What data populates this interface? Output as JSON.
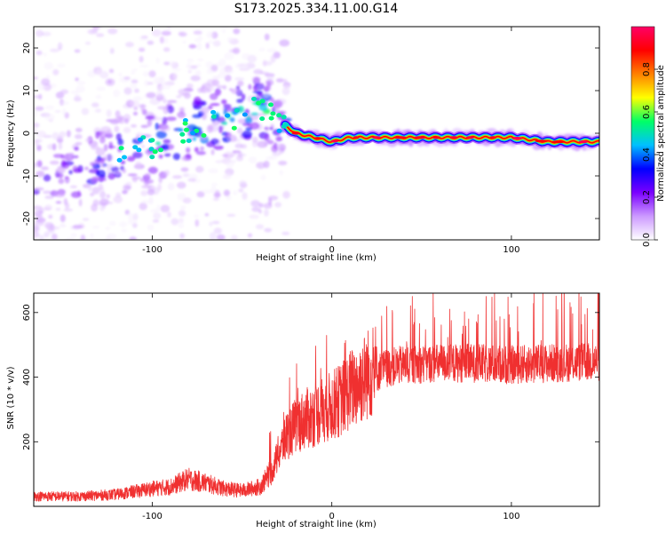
{
  "figure": {
    "title": "S173.2025.334.11.00.G14"
  },
  "chart_data": [
    {
      "type": "heatmap",
      "title": "S173.2025.334.11.00.G14",
      "xlabel": "Height of straight line (km)",
      "ylabel": "Frequency (Hz)",
      "xlim": [
        -166,
        149
      ],
      "ylim": [
        -25,
        25
      ],
      "xticks": [
        -100,
        0,
        100
      ],
      "yticks": [
        -20,
        -10,
        0,
        10,
        20
      ],
      "colorbar": {
        "label": "Normalized spectral amplitude",
        "range": [
          0.0,
          1.0
        ],
        "ticks": [
          "0.0",
          "0.2",
          "0.4",
          "0.6",
          "0.8"
        ],
        "tick_values": [
          0.0,
          0.2,
          0.4,
          0.6,
          0.8
        ],
        "colors": [
          "#ffffff",
          "#cc99ff",
          "#7a00ff",
          "#0000ff",
          "#00c0ff",
          "#00ff66",
          "#ffff00",
          "#ff8000",
          "#ff0000",
          "#ff0066"
        ]
      },
      "ridge": {
        "x": [
          -166,
          -140,
          -120,
          -100,
          -80,
          -60,
          -40,
          -30,
          -20,
          -10,
          0,
          10,
          20,
          40,
          60,
          80,
          100,
          120,
          149
        ],
        "y": [
          -12,
          -9,
          -6,
          -3,
          1,
          3,
          6,
          3,
          0,
          -1,
          -2,
          -1,
          -1,
          -1,
          -1,
          -1,
          -1,
          -2,
          -2
        ],
        "amplitude": [
          0.2,
          0.25,
          0.3,
          0.35,
          0.4,
          0.4,
          0.45,
          0.4,
          0.6,
          0.7,
          0.7,
          0.8,
          0.85,
          0.85,
          0.9,
          0.9,
          0.85,
          0.9,
          0.7
        ]
      }
    },
    {
      "type": "line",
      "xlabel": "Height of straight line (km)",
      "ylabel": "SNR (10 * v/v)",
      "xlim": [
        -166,
        149
      ],
      "ylim": [
        0,
        660
      ],
      "xticks": [
        -100,
        0,
        100
      ],
      "yticks": [
        200,
        400,
        600
      ],
      "color": "#f03030",
      "trend": {
        "x": [
          -166,
          -140,
          -120,
          -100,
          -90,
          -80,
          -70,
          -60,
          -50,
          -40,
          -35,
          -30,
          -25,
          -20,
          -15,
          -10,
          -5,
          0,
          5,
          10,
          15,
          20,
          30,
          40,
          60,
          80,
          100,
          120,
          149
        ],
        "y": [
          25,
          25,
          30,
          45,
          50,
          70,
          60,
          45,
          40,
          50,
          80,
          160,
          220,
          250,
          270,
          280,
          300,
          310,
          330,
          360,
          380,
          410,
          440,
          450,
          455,
          455,
          450,
          455,
          460
        ]
      }
    }
  ]
}
